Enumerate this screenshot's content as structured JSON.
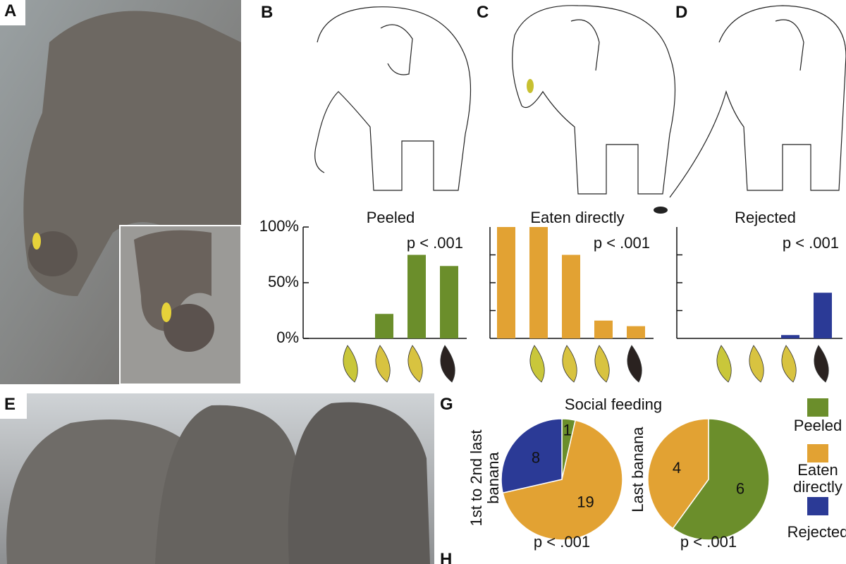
{
  "panels": [
    "A",
    "B",
    "C",
    "D",
    "E",
    "G",
    "H"
  ],
  "chart_data": [
    {
      "type": "bar",
      "title": "Peeled",
      "annotation": "p < .001",
      "categories": [
        null,
        null,
        null,
        null,
        null
      ],
      "values": [
        0,
        0,
        22,
        75,
        65
      ],
      "color": "#6b8e2b",
      "ylim": [
        0,
        100
      ],
      "yticks": [
        {
          "value": 0,
          "label": "0%"
        },
        {
          "value": 50,
          "label": "50%"
        },
        {
          "value": 100,
          "label": "100%"
        }
      ]
    },
    {
      "type": "bar",
      "title": "Eaten directly",
      "annotation": "p < .001",
      "categories": [
        null,
        null,
        null,
        null,
        null
      ],
      "values": [
        100,
        100,
        75,
        16,
        11
      ],
      "color": "#e2a233",
      "ylim": [
        0,
        100
      ],
      "yticks": [
        25,
        50,
        75
      ]
    },
    {
      "type": "bar",
      "title": "Rejected",
      "annotation": "p < .001",
      "categories": [
        null,
        null,
        null,
        null,
        null
      ],
      "values": [
        0,
        0,
        0,
        3,
        41
      ],
      "color": "#2b3a96",
      "ylim": [
        0,
        100
      ],
      "yticks": [
        25,
        50,
        75
      ]
    },
    {
      "type": "pie",
      "label": "1st to 2nd last banana",
      "annotation": "p < .001",
      "categories": [
        "Peeled",
        "Eaten directly",
        "Rejected"
      ],
      "values": [
        1,
        19,
        8
      ],
      "colors": [
        "#6b8e2b",
        "#e2a233",
        "#2b3a96"
      ]
    },
    {
      "type": "pie",
      "label": "Last banana",
      "annotation": "p < .001",
      "categories": [
        "Peeled",
        "Eaten directly"
      ],
      "values": [
        6,
        4
      ],
      "colors": [
        "#6b8e2b",
        "#e2a233"
      ]
    }
  ],
  "figure_g": {
    "title": "Social feeding",
    "legend": {
      "names": [
        "Peeled",
        "Eaten directly",
        "Rejected"
      ],
      "colors": [
        "#6b8e2b",
        "#e2a233",
        "#2b3a96"
      ]
    }
  }
}
